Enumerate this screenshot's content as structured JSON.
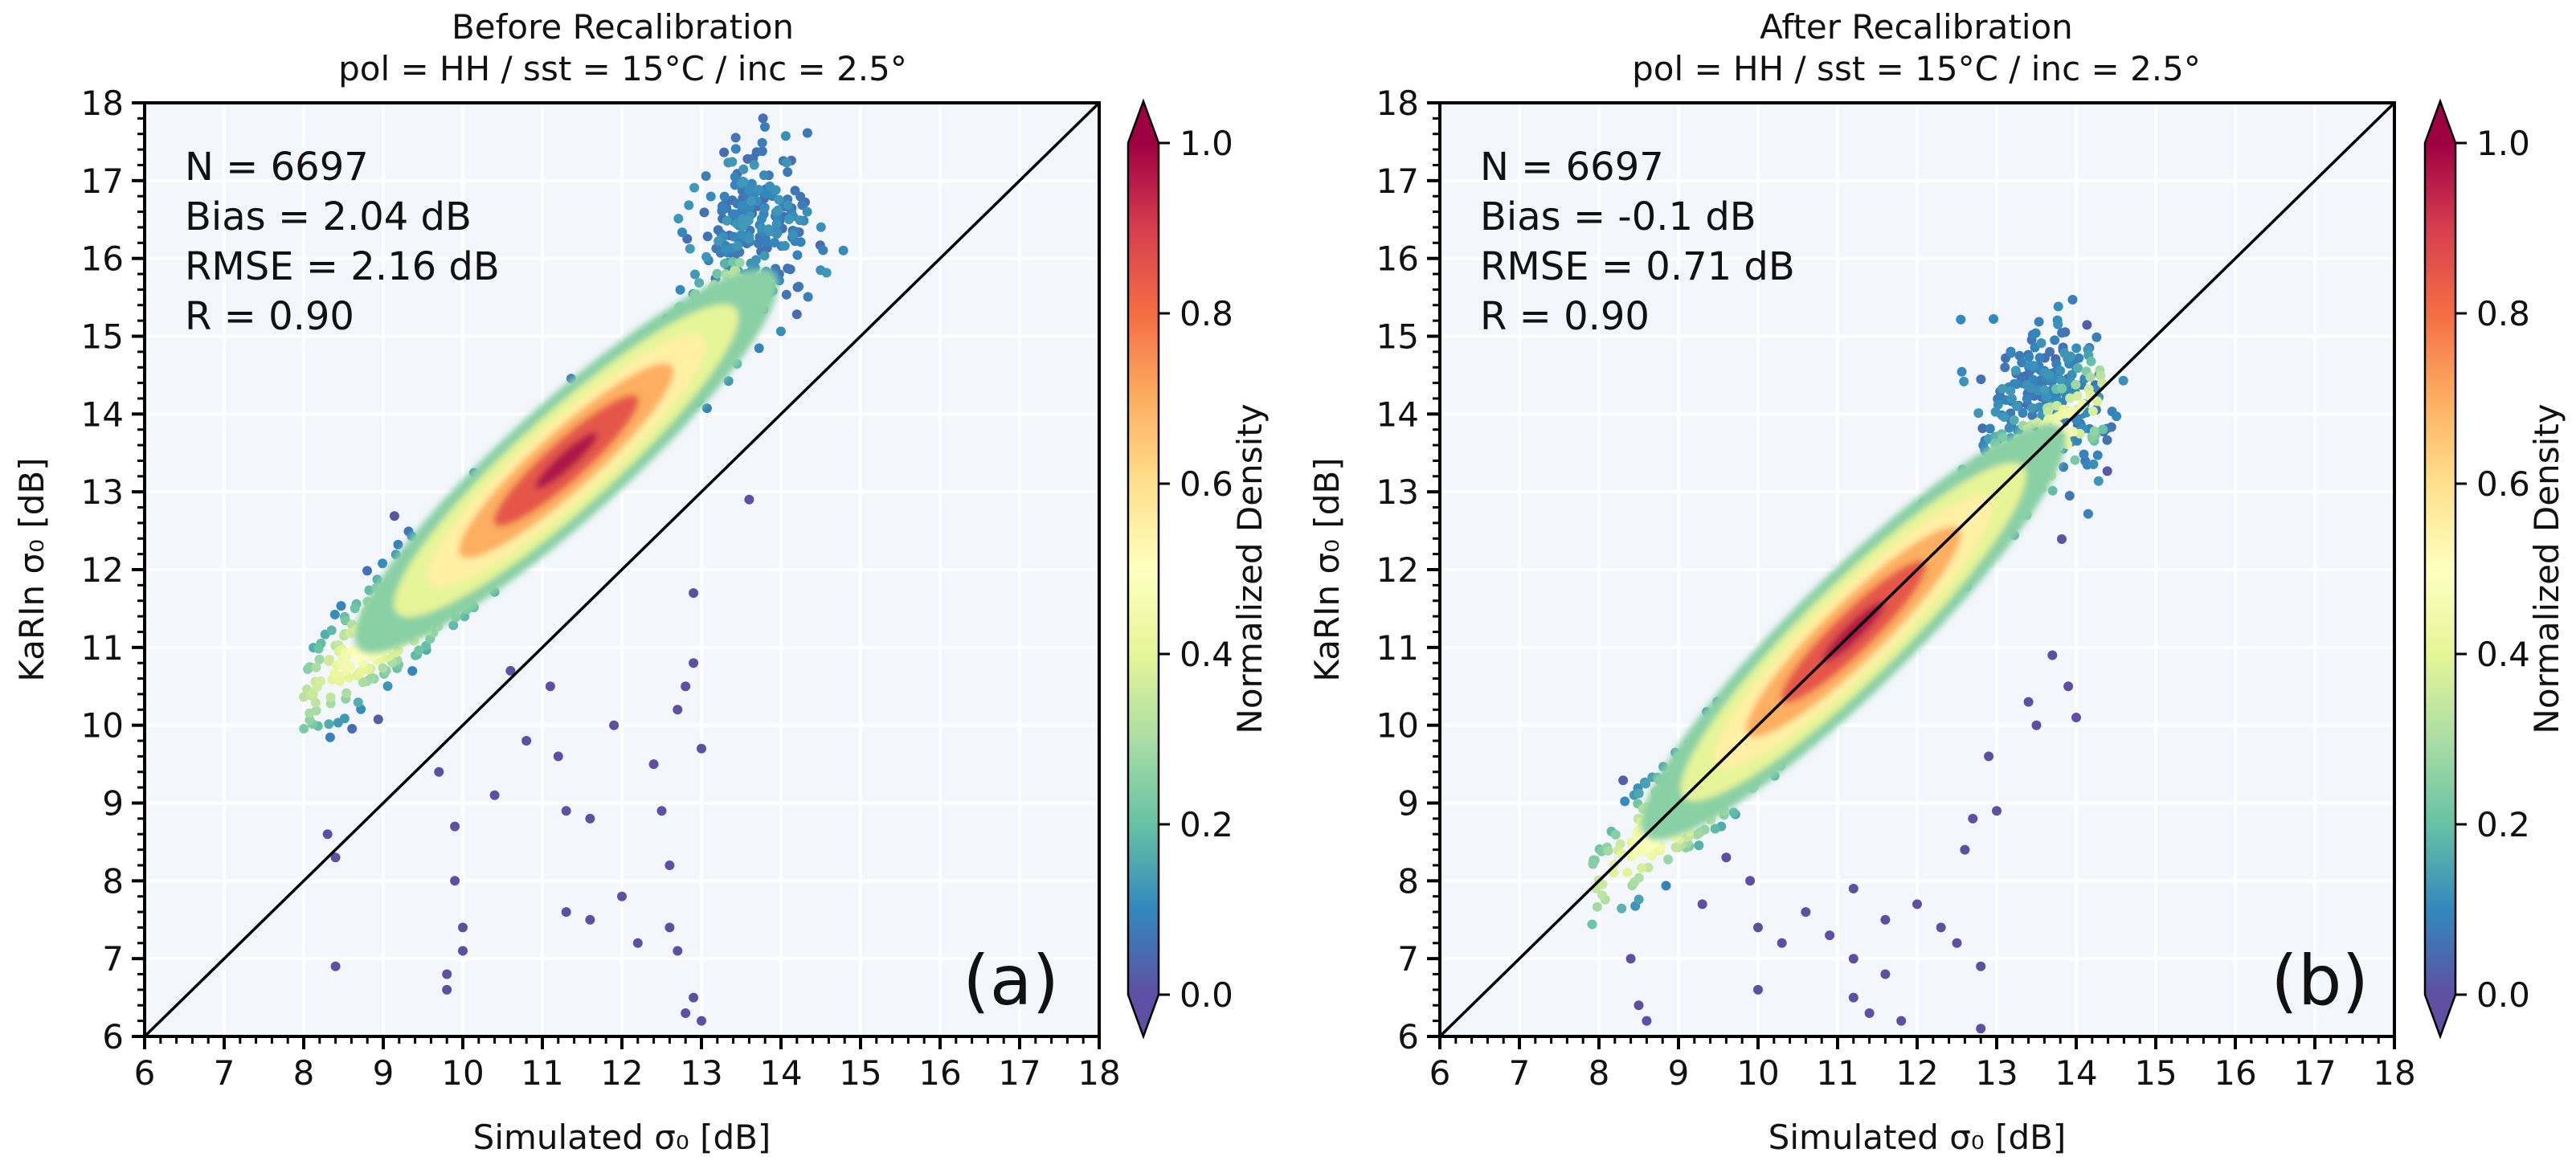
{
  "chart_data": [
    {
      "type": "scatter",
      "subtype": "density-colored scatter",
      "title": "Before Recalibration",
      "subtitle": "pol = HH  / sst = 15°C / inc = 2.5°",
      "xlabel": "Simulated σ₀ [dB]",
      "ylabel": "KaRIn σ₀ [dB]",
      "xlim": [
        6,
        18
      ],
      "ylim": [
        6,
        18
      ],
      "xticks": [
        "6",
        "7",
        "8",
        "9",
        "10",
        "11",
        "12",
        "13",
        "14",
        "15",
        "16",
        "17",
        "18"
      ],
      "yticks": [
        "6",
        "7",
        "8",
        "9",
        "10",
        "11",
        "12",
        "13",
        "14",
        "15",
        "16",
        "17",
        "18"
      ],
      "grid": true,
      "reference_line": "1:1",
      "stats": [
        "N = 6697",
        "Bias = 2.04 dB",
        "RMSE = 2.16 dB",
        "R = 0.90"
      ],
      "panel_label": "(a)",
      "density_peak": {
        "x": 11.3,
        "y": 13.4
      },
      "core_trend": {
        "x_range": [
          8.0,
          13.5
        ],
        "slope": 0.92,
        "intercept": 2.97
      },
      "outliers": [
        [
          8.4,
          6.9
        ],
        [
          8.3,
          8.6
        ],
        [
          8.4,
          8.3
        ],
        [
          9.7,
          9.4
        ],
        [
          9.9,
          8.7
        ],
        [
          9.9,
          8.0
        ],
        [
          10.0,
          7.4
        ],
        [
          9.8,
          6.8
        ],
        [
          9.8,
          6.6
        ],
        [
          10.0,
          7.1
        ],
        [
          10.4,
          9.1
        ],
        [
          10.8,
          9.8
        ],
        [
          11.2,
          9.6
        ],
        [
          11.3,
          8.9
        ],
        [
          11.6,
          8.8
        ],
        [
          11.3,
          7.6
        ],
        [
          11.6,
          7.5
        ],
        [
          12.0,
          7.8
        ],
        [
          12.2,
          7.2
        ],
        [
          12.5,
          8.9
        ],
        [
          12.6,
          8.2
        ],
        [
          12.6,
          7.4
        ],
        [
          12.7,
          7.1
        ],
        [
          12.9,
          6.5
        ],
        [
          13.0,
          6.2
        ],
        [
          12.8,
          6.3
        ],
        [
          13.0,
          9.7
        ],
        [
          12.7,
          10.2
        ],
        [
          12.4,
          9.5
        ],
        [
          12.8,
          10.5
        ],
        [
          12.9,
          10.8
        ],
        [
          13.6,
          12.9
        ],
        [
          12.9,
          11.7
        ],
        [
          11.9,
          10.0
        ],
        [
          10.6,
          10.7
        ],
        [
          11.1,
          10.5
        ]
      ]
    },
    {
      "type": "scatter",
      "subtype": "density-colored scatter",
      "title": "After Recalibration",
      "subtitle": "pol = HH  / sst = 15°C / inc = 2.5°",
      "xlabel": "Simulated σ₀ [dB]",
      "ylabel": "KaRIn σ₀ [dB]",
      "xlim": [
        6,
        18
      ],
      "ylim": [
        6,
        18
      ],
      "xticks": [
        "6",
        "7",
        "8",
        "9",
        "10",
        "11",
        "12",
        "13",
        "14",
        "15",
        "16",
        "17",
        "18"
      ],
      "yticks": [
        "6",
        "7",
        "8",
        "9",
        "10",
        "11",
        "12",
        "13",
        "14",
        "15",
        "16",
        "17",
        "18"
      ],
      "grid": true,
      "reference_line": "1:1",
      "stats": [
        "N = 6697",
        "Bias = -0.1 dB",
        "RMSE = 0.71 dB",
        "R = 0.90"
      ],
      "panel_label": "(b)",
      "density_peak": {
        "x": 11.2,
        "y": 11.2
      },
      "core_trend": {
        "x_range": [
          7.9,
          14.4
        ],
        "slope": 1.0,
        "intercept": -0.05
      },
      "outliers": [
        [
          8.5,
          6.4
        ],
        [
          8.6,
          6.2
        ],
        [
          8.4,
          7.0
        ],
        [
          9.3,
          7.7
        ],
        [
          9.6,
          8.3
        ],
        [
          9.9,
          8.0
        ],
        [
          10.0,
          7.4
        ],
        [
          10.0,
          6.6
        ],
        [
          10.3,
          7.2
        ],
        [
          10.6,
          7.6
        ],
        [
          10.9,
          7.3
        ],
        [
          11.2,
          7.0
        ],
        [
          11.2,
          6.5
        ],
        [
          11.4,
          6.3
        ],
        [
          11.6,
          6.8
        ],
        [
          11.6,
          7.5
        ],
        [
          12.0,
          7.7
        ],
        [
          12.3,
          7.4
        ],
        [
          12.5,
          7.2
        ],
        [
          12.8,
          6.9
        ],
        [
          12.6,
          8.4
        ],
        [
          12.7,
          8.8
        ],
        [
          12.9,
          9.6
        ],
        [
          13.0,
          8.9
        ],
        [
          12.8,
          6.1
        ],
        [
          11.8,
          6.2
        ],
        [
          11.2,
          7.9
        ],
        [
          13.5,
          10.0
        ],
        [
          13.9,
          10.5
        ],
        [
          14.0,
          10.1
        ],
        [
          13.7,
          10.9
        ],
        [
          13.4,
          10.3
        ]
      ]
    }
  ],
  "colorbar": {
    "label": "Normalized Density",
    "ticks": [
      "0.0",
      "0.2",
      "0.4",
      "0.6",
      "0.8",
      "1.0"
    ],
    "tick_values": [
      0,
      0.2,
      0.4,
      0.6,
      0.8,
      1.0
    ],
    "colormap": "Spectral_r",
    "colors": [
      "#5e4fa2",
      "#3288bd",
      "#66c2a5",
      "#abdda4",
      "#e6f598",
      "#ffffbf",
      "#fee08b",
      "#fdae61",
      "#f46d43",
      "#d53e4f",
      "#9e0142"
    ],
    "extend": "both"
  },
  "style": {
    "plot_background": "#f3f6fb",
    "grid_color": "#ffffff",
    "reference_line_color": "#000000"
  }
}
